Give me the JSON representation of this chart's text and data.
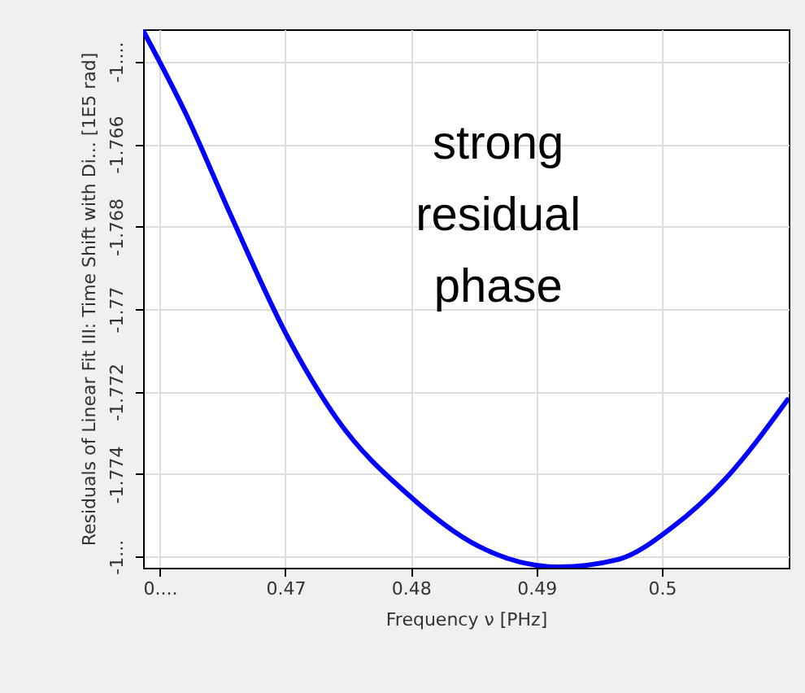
{
  "chart_data": {
    "type": "line",
    "xlabel": "Frequency ν [PHz]",
    "ylabel": "Residuals of Linear Fit III: Time Shift with Di... [1E5 rad]",
    "x": [
      0.45867,
      0.46211,
      0.46569,
      0.4701,
      0.47408,
      0.47998,
      0.48528,
      0.49175,
      0.4965,
      0.50081,
      0.5051,
      0.51
    ],
    "series": [
      {
        "color": "#0000ff",
        "values": [
          -1.76325,
          -1.76529,
          -1.76775,
          -1.77063,
          -1.77265,
          -1.77455,
          -1.77573,
          -1.77625,
          -1.77607,
          -1.77529,
          -1.7741,
          -1.7722
        ]
      }
    ],
    "xlim": [
      0.45867,
      0.5101
    ],
    "ylim": [
      -1.77627,
      -1.76322
    ],
    "xticks": [
      {
        "value": 0.46,
        "label": "0...."
      },
      0.47,
      0.48,
      0.49,
      0.5
    ],
    "yticks": [
      {
        "value": -1.776,
        "label": "-1..."
      },
      -1.774,
      -1.772,
      -1.77,
      -1.768,
      -1.766,
      {
        "value": -1.764,
        "label": "-1...."
      }
    ],
    "annotations": [
      "strong residual phase"
    ],
    "grid": true,
    "marker": "none",
    "line_style": "solid"
  }
}
